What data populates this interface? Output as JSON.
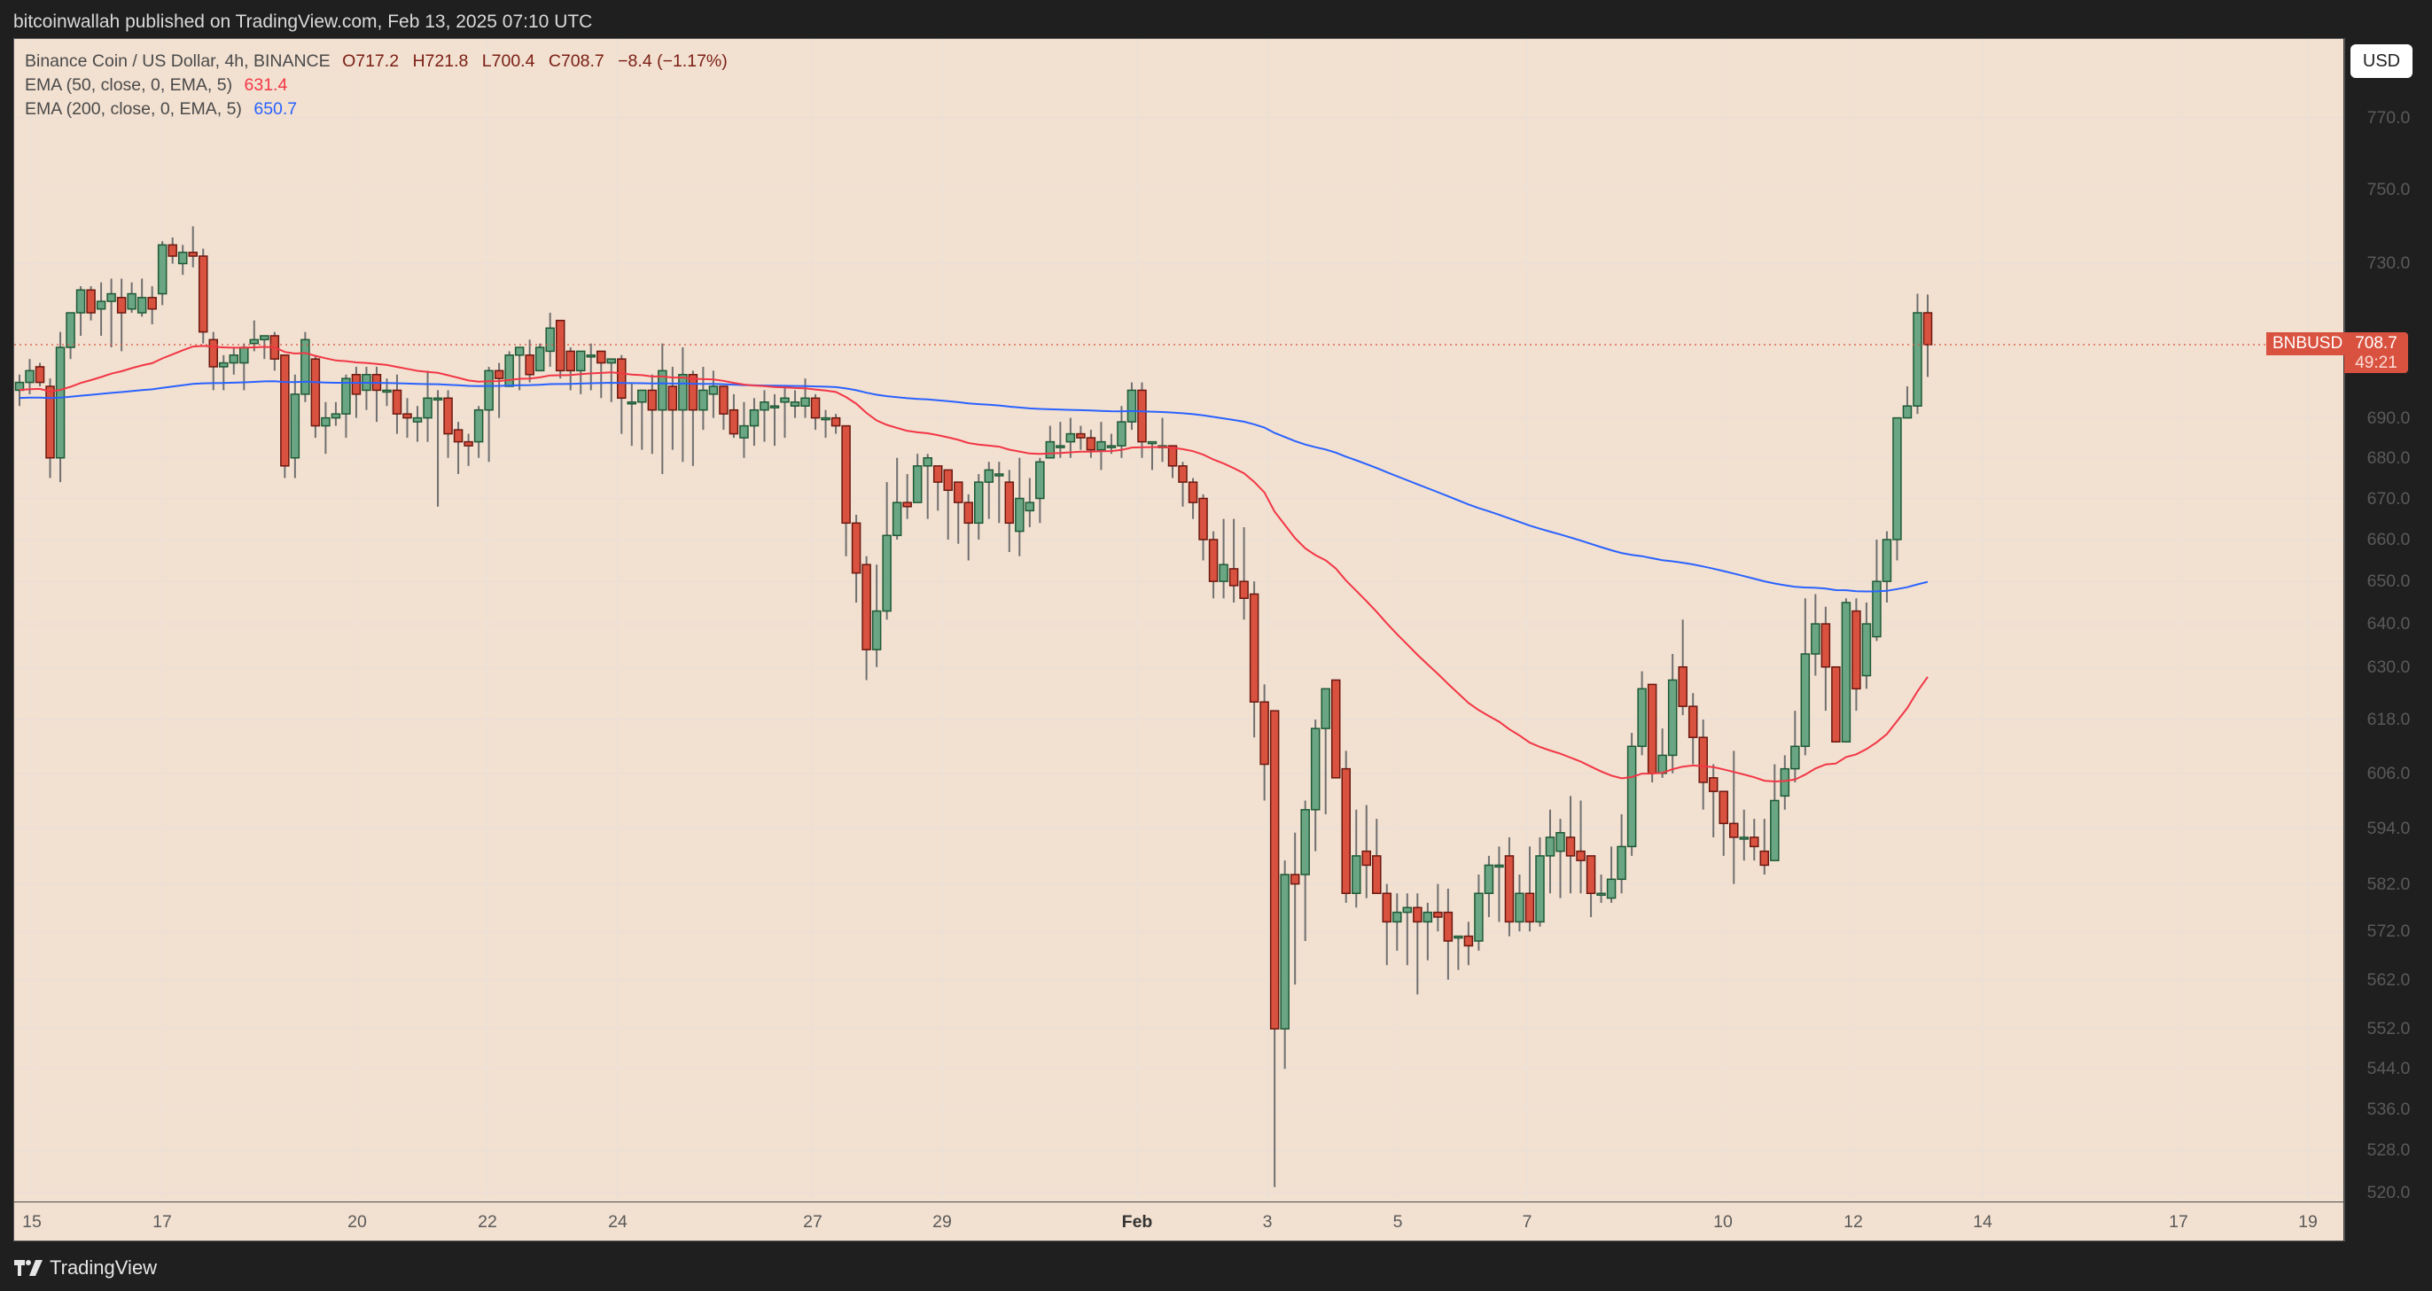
{
  "header": {
    "publisher_text": "bitcoinwallah published on TradingView.com, Feb 13, 2025 07:10 UTC"
  },
  "legend": {
    "symbol_title": "Binance Coin / US Dollar, 4h, BINANCE",
    "open": "O717.2",
    "high": "H721.8",
    "low": "L700.4",
    "close": "C708.7",
    "change": "−8.4 (−1.17%)",
    "ema50_label": "EMA (50, close, 0, EMA, 5)",
    "ema50_value": "631.4",
    "ema200_label": "EMA (200, close, 0, EMA, 5)",
    "ema200_value": "650.7"
  },
  "price_scale": {
    "currency_button": "USD",
    "labels": [
      "770.0",
      "750.0",
      "730.0",
      "690.0",
      "680.0",
      "670.0",
      "660.0",
      "650.0",
      "640.0",
      "630.0",
      "618.0",
      "606.0",
      "594.0",
      "582.0",
      "572.0",
      "562.0",
      "552.0",
      "544.0",
      "536.0",
      "528.0",
      "520.0"
    ],
    "symbol_badge": "BNBUSD",
    "last_price": "708.7",
    "countdown": "49:21"
  },
  "time_scale": {
    "labels": [
      {
        "text": "15",
        "x": 36
      },
      {
        "text": "17",
        "x": 183
      },
      {
        "text": "20",
        "x": 403
      },
      {
        "text": "22",
        "x": 550
      },
      {
        "text": "24",
        "x": 697
      },
      {
        "text": "27",
        "x": 917
      },
      {
        "text": "29",
        "x": 1063
      },
      {
        "text": "Feb",
        "x": 1283,
        "bold": true
      },
      {
        "text": "3",
        "x": 1430
      },
      {
        "text": "5",
        "x": 1577
      },
      {
        "text": "7",
        "x": 1723
      },
      {
        "text": "10",
        "x": 1944
      },
      {
        "text": "12",
        "x": 2091
      },
      {
        "text": "14",
        "x": 2237
      },
      {
        "text": "17",
        "x": 2458
      },
      {
        "text": "19",
        "x": 2604
      }
    ]
  },
  "footer": {
    "brand": "TradingView"
  },
  "colors": {
    "up": "#6aa584",
    "up_border": "#1e5a36",
    "down": "#d9523f",
    "down_border": "#6b1810",
    "wick": "#707070",
    "ema50": "#f23645",
    "ema200": "#2962ff",
    "background": "#f2e0d0",
    "grid": "#ebdfd6",
    "last_price": "#d9523f"
  },
  "chart_data": {
    "type": "candlestick",
    "title": "Binance Coin / US Dollar, 4h, BINANCE",
    "xlabel": "",
    "ylabel": "USD",
    "y_scale": "log",
    "ylim": [
      520,
      775
    ],
    "last_price": 708.7,
    "grid": true,
    "series_indicators": [
      {
        "name": "EMA (50, close, 0, EMA, 5)",
        "last": 631.4,
        "color": "#f23645"
      },
      {
        "name": "EMA (200, close, 0, EMA, 5)",
        "last": 650.7,
        "color": "#2962ff"
      }
    ],
    "candles": [
      [
        697,
        699,
        701,
        693
      ],
      [
        699,
        702,
        705,
        696
      ],
      [
        703,
        699,
        704,
        698
      ],
      [
        698,
        680,
        700,
        675
      ],
      [
        680,
        708,
        712,
        674
      ],
      [
        708,
        717,
        717,
        705
      ],
      [
        717,
        723,
        724,
        711
      ],
      [
        723,
        717,
        724,
        715
      ],
      [
        718,
        720,
        725,
        711
      ],
      [
        720,
        722,
        726,
        708
      ],
      [
        721,
        717,
        726,
        707
      ],
      [
        718,
        722,
        725,
        717
      ],
      [
        717,
        721,
        726,
        716
      ],
      [
        721,
        718,
        724,
        714
      ],
      [
        722,
        735,
        736,
        719
      ],
      [
        735,
        732,
        737,
        730
      ],
      [
        730,
        733,
        735,
        727
      ],
      [
        733,
        732,
        740,
        729
      ],
      [
        732,
        712,
        734,
        709
      ],
      [
        710,
        703,
        712,
        697
      ],
      [
        703,
        704,
        706,
        697
      ],
      [
        704,
        706,
        708,
        701
      ],
      [
        704,
        708,
        709,
        697
      ],
      [
        709,
        710,
        715,
        707
      ],
      [
        710,
        711,
        711,
        705
      ],
      [
        711,
        705,
        712,
        702
      ],
      [
        706,
        678,
        706,
        675
      ],
      [
        680,
        696,
        701,
        675
      ],
      [
        696,
        710,
        712,
        694
      ],
      [
        705,
        688,
        706,
        685
      ],
      [
        688,
        690,
        694,
        681
      ],
      [
        690,
        691,
        694,
        688
      ],
      [
        691,
        700,
        701,
        685
      ],
      [
        701,
        696,
        703,
        690
      ],
      [
        697,
        701,
        703,
        692
      ],
      [
        701,
        697,
        703,
        689
      ],
      [
        697,
        697,
        700,
        693
      ],
      [
        697,
        691,
        701,
        686
      ],
      [
        691,
        690,
        695,
        685
      ],
      [
        689,
        690,
        693,
        684
      ],
      [
        690,
        695,
        702,
        684
      ],
      [
        695,
        695,
        697,
        668
      ],
      [
        695,
        686,
        697,
        680
      ],
      [
        687,
        684,
        689,
        676
      ],
      [
        684,
        683,
        686,
        678
      ],
      [
        684,
        692,
        693,
        680
      ],
      [
        692,
        702,
        703,
        679
      ],
      [
        702,
        700,
        704,
        690
      ],
      [
        698,
        706,
        707,
        698
      ],
      [
        706,
        708,
        708,
        697
      ],
      [
        706,
        701,
        710,
        699
      ],
      [
        702,
        708,
        709,
        702
      ],
      [
        707,
        713,
        717,
        703
      ],
      [
        715,
        702,
        715,
        700
      ],
      [
        707,
        702,
        708,
        697
      ],
      [
        702,
        707,
        707,
        696
      ],
      [
        706,
        706,
        709,
        697
      ],
      [
        707,
        704,
        706,
        695
      ],
      [
        704,
        705,
        702,
        694
      ],
      [
        705,
        695,
        706,
        686
      ],
      [
        694,
        694,
        699,
        683
      ],
      [
        694,
        697,
        696,
        682
      ],
      [
        697,
        692,
        701,
        681
      ],
      [
        692,
        702,
        709,
        676
      ],
      [
        698,
        692,
        703,
        682
      ],
      [
        692,
        701,
        708,
        679
      ],
      [
        701,
        692,
        702,
        678
      ],
      [
        692,
        697,
        703,
        687
      ],
      [
        696,
        698,
        702,
        690
      ],
      [
        698,
        691,
        697,
        687
      ],
      [
        692,
        686,
        696,
        685
      ],
      [
        685,
        688,
        694,
        680
      ],
      [
        688,
        692,
        695,
        683
      ],
      [
        692,
        694,
        697,
        684
      ],
      [
        693,
        693,
        696,
        683
      ],
      [
        694,
        695,
        698,
        685
      ],
      [
        693,
        694,
        697,
        690
      ],
      [
        693,
        695,
        700,
        690
      ],
      [
        695,
        690,
        696,
        687
      ],
      [
        690,
        690,
        692,
        685
      ],
      [
        690,
        688,
        691,
        686
      ],
      [
        688,
        664,
        688,
        656
      ],
      [
        664,
        652,
        666,
        645
      ],
      [
        654,
        634,
        656,
        627
      ],
      [
        634,
        643,
        654,
        630
      ],
      [
        643,
        661,
        674,
        641
      ],
      [
        661,
        669,
        680,
        660
      ],
      [
        669,
        668,
        676,
        665
      ],
      [
        669,
        678,
        681,
        670
      ],
      [
        678,
        680,
        681,
        665
      ],
      [
        678,
        674,
        676,
        667
      ],
      [
        677,
        672,
        676,
        660
      ],
      [
        674,
        669,
        674,
        659
      ],
      [
        669,
        664,
        671,
        655
      ],
      [
        664,
        674,
        676,
        660
      ],
      [
        674,
        677,
        679,
        665
      ],
      [
        676,
        676,
        679,
        664
      ],
      [
        674,
        664,
        677,
        657
      ],
      [
        662,
        670,
        680,
        656
      ],
      [
        667,
        669,
        675,
        663
      ],
      [
        670,
        679,
        680,
        664
      ],
      [
        680,
        684,
        688,
        680
      ],
      [
        683,
        683,
        689,
        680
      ],
      [
        684,
        686,
        690,
        680
      ],
      [
        686,
        685,
        688,
        682
      ],
      [
        685,
        682,
        687,
        680
      ],
      [
        682,
        684,
        689,
        677
      ],
      [
        683,
        683,
        686,
        681
      ],
      [
        683,
        689,
        693,
        680
      ],
      [
        689,
        697,
        699,
        687
      ],
      [
        697,
        684,
        699,
        680
      ],
      [
        684,
        684,
        684,
        677
      ],
      [
        683,
        683,
        690,
        679
      ],
      [
        683,
        678,
        682,
        675
      ],
      [
        678,
        674,
        679,
        668
      ],
      [
        674,
        669,
        675,
        665
      ],
      [
        670,
        660,
        671,
        655
      ],
      [
        660,
        650,
        662,
        646
      ],
      [
        650,
        654,
        665,
        646
      ],
      [
        653,
        649,
        665,
        645
      ],
      [
        650,
        646,
        663,
        641
      ],
      [
        647,
        622,
        650,
        614
      ],
      [
        622,
        608,
        626,
        600
      ],
      [
        620,
        552,
        620,
        521
      ],
      [
        552,
        584,
        587,
        544
      ],
      [
        584,
        582,
        593,
        561
      ],
      [
        584,
        598,
        600,
        570
      ],
      [
        598,
        616,
        618,
        589
      ],
      [
        616,
        625,
        625,
        597
      ],
      [
        627,
        605,
        627,
        605
      ],
      [
        607,
        580,
        611,
        578
      ],
      [
        580,
        588,
        598,
        577
      ],
      [
        589,
        586,
        599,
        579
      ],
      [
        588,
        580,
        596,
        580
      ],
      [
        580,
        574,
        582,
        565
      ],
      [
        574,
        576,
        580,
        568
      ],
      [
        576,
        577,
        580,
        565
      ],
      [
        577,
        574,
        580,
        559
      ],
      [
        574,
        576,
        578,
        566
      ],
      [
        576,
        575,
        582,
        572
      ],
      [
        576,
        570,
        581,
        562
      ],
      [
        571,
        571,
        570,
        564
      ],
      [
        571,
        569,
        574,
        565
      ],
      [
        570,
        580,
        584,
        568
      ],
      [
        580,
        586,
        588,
        575
      ],
      [
        586,
        586,
        590,
        574
      ],
      [
        588,
        574,
        592,
        571
      ],
      [
        574,
        580,
        584,
        572
      ],
      [
        580,
        574,
        590,
        572
      ],
      [
        574,
        588,
        592,
        573
      ],
      [
        588,
        592,
        598,
        580
      ],
      [
        589,
        593,
        596,
        579
      ],
      [
        592,
        588,
        601,
        580
      ],
      [
        589,
        587,
        600,
        580
      ],
      [
        588,
        580,
        588,
        575
      ],
      [
        580,
        580,
        584,
        578
      ],
      [
        579,
        583,
        590,
        578
      ],
      [
        583,
        590,
        597,
        580
      ],
      [
        590,
        612,
        615,
        588
      ],
      [
        612,
        625,
        629,
        610
      ],
      [
        626,
        606,
        623,
        604
      ],
      [
        606,
        610,
        616,
        605
      ],
      [
        610,
        627,
        633,
        606
      ],
      [
        630,
        621,
        641,
        619
      ],
      [
        621,
        614,
        624,
        608
      ],
      [
        614,
        604,
        618,
        598
      ],
      [
        605,
        602,
        608,
        592
      ],
      [
        602,
        595,
        598,
        588
      ],
      [
        595,
        592,
        611,
        582
      ],
      [
        592,
        592,
        598,
        587
      ],
      [
        592,
        590,
        596,
        587
      ],
      [
        589,
        586,
        596,
        584
      ],
      [
        587,
        600,
        608,
        587
      ],
      [
        601,
        607,
        610,
        598
      ],
      [
        607,
        612,
        620,
        604
      ],
      [
        612,
        633,
        646,
        610
      ],
      [
        633,
        640,
        647,
        628
      ],
      [
        640,
        630,
        644,
        620
      ],
      [
        630,
        613,
        627,
        613
      ],
      [
        613,
        645,
        646,
        613
      ],
      [
        643,
        625,
        646,
        620
      ],
      [
        628,
        640,
        645,
        625
      ],
      [
        637,
        650,
        660,
        636
      ],
      [
        650,
        660,
        662,
        645
      ],
      [
        660,
        690,
        690,
        655
      ],
      [
        690,
        693,
        698,
        692
      ],
      [
        693,
        717,
        722,
        691
      ],
      [
        717,
        708.7,
        721.8,
        700.4
      ]
    ]
  }
}
